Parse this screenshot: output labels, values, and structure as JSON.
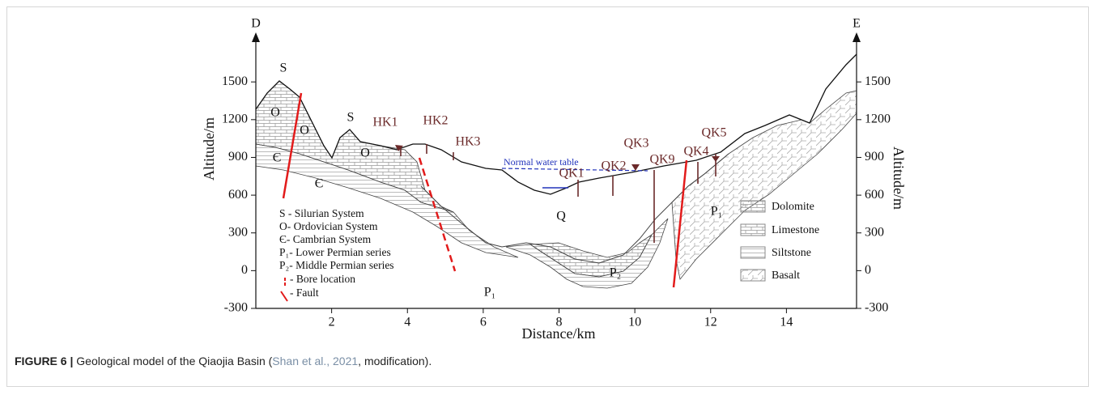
{
  "figure": {
    "left_label": "D",
    "right_label": "E",
    "y_axis_label": "Altitude/m",
    "x_axis_label": "Distance/km",
    "xlim": [
      0,
      15.85
    ],
    "ylim": [
      -300,
      1720
    ],
    "xticks": [
      2,
      4,
      6,
      8,
      10,
      12,
      14
    ],
    "yticks": [
      -300,
      0,
      300,
      600,
      900,
      1200,
      1500
    ],
    "strata_labels": [
      "S",
      "O",
      "O",
      "S",
      "O",
      "Є",
      "Є",
      "Q",
      "P₁",
      "P₂",
      "P₁"
    ],
    "bores": [
      "HK1",
      "HK2",
      "HK3",
      "QK1",
      "QK2",
      "QK3",
      "QK9",
      "QK4",
      "QK5"
    ],
    "water_table": "Normal water table",
    "legend": [
      "S - Silurian System",
      "O- Ordovician System",
      "Є- Cambrian System",
      "P₁- Lower Permian series",
      "P₂- Middle Permian series",
      "- Bore location",
      "- Fault"
    ],
    "lithology": [
      "Dolomite",
      "Limestone",
      "Siltstone",
      "Basalt"
    ]
  },
  "caption": {
    "label": "FIGURE 6 |",
    "text": "Geological model of the Qiaojia Basin (",
    "cite": "Shan et al., 2021",
    "end": ", modification)."
  }
}
